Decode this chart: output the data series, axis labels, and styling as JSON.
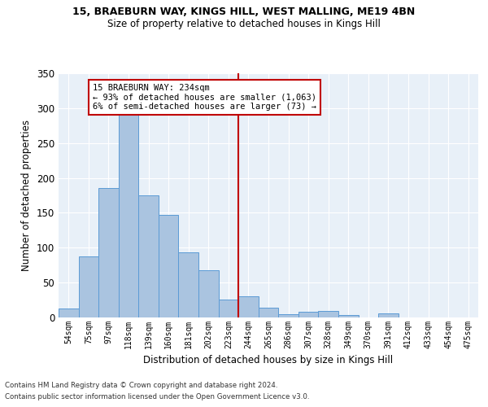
{
  "title1": "15, BRAEBURN WAY, KINGS HILL, WEST MALLING, ME19 4BN",
  "title2": "Size of property relative to detached houses in Kings Hill",
  "xlabel": "Distribution of detached houses by size in Kings Hill",
  "ylabel": "Number of detached properties",
  "categories": [
    "54sqm",
    "75sqm",
    "97sqm",
    "118sqm",
    "139sqm",
    "160sqm",
    "181sqm",
    "202sqm",
    "223sqm",
    "244sqm",
    "265sqm",
    "286sqm",
    "307sqm",
    "328sqm",
    "349sqm",
    "370sqm",
    "391sqm",
    "412sqm",
    "433sqm",
    "454sqm",
    "475sqm"
  ],
  "values": [
    13,
    87,
    185,
    290,
    175,
    147,
    93,
    68,
    26,
    30,
    14,
    5,
    8,
    9,
    3,
    0,
    6,
    0,
    0,
    0,
    0
  ],
  "bar_color": "#aac4e0",
  "bar_edge_color": "#5b9bd5",
  "vline_color": "#c00000",
  "annotation_text": "15 BRAEBURN WAY: 234sqm\n← 93% of detached houses are smaller (1,063)\n6% of semi-detached houses are larger (73) →",
  "annotation_box_color": "#c00000",
  "ylim": [
    0,
    350
  ],
  "yticks": [
    0,
    50,
    100,
    150,
    200,
    250,
    300,
    350
  ],
  "bg_color": "#e8f0f8",
  "footer1": "Contains HM Land Registry data © Crown copyright and database right 2024.",
  "footer2": "Contains public sector information licensed under the Open Government Licence v3.0."
}
